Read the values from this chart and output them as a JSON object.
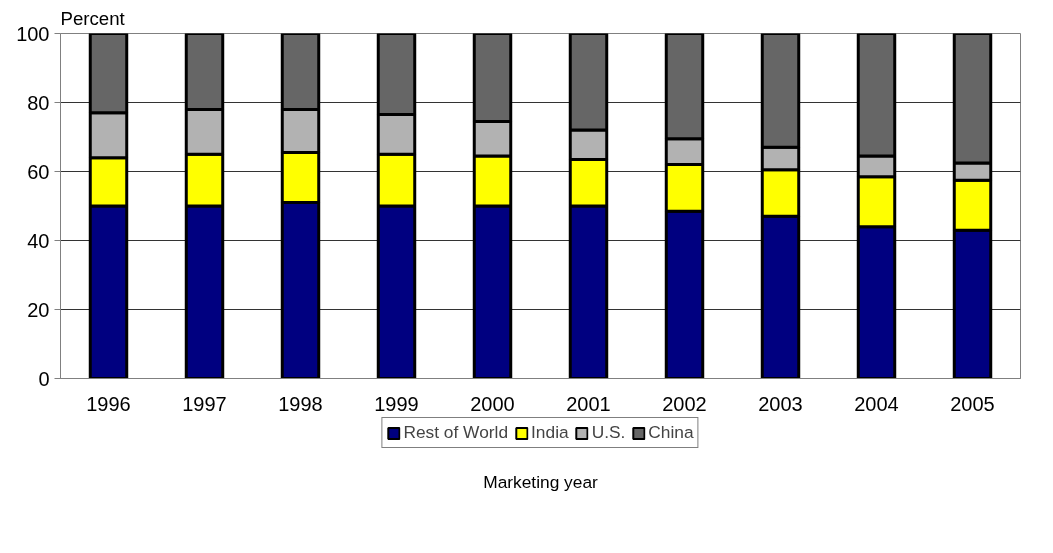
{
  "chart_data": {
    "type": "bar",
    "stacked": true,
    "ylabel": "Percent",
    "xlabel": "Marketing year",
    "categories": [
      "1996",
      "1997",
      "1998",
      "1999",
      "2000",
      "2001",
      "2002",
      "2003",
      "2004",
      "2005"
    ],
    "ylim": [
      0,
      100
    ],
    "yticks": [
      0,
      20,
      40,
      60,
      80,
      100
    ],
    "grid": "y",
    "legend": "bottom",
    "series": [
      {
        "name": "Rest of World",
        "color": "#000080",
        "values": [
          50,
          50,
          51,
          50,
          50,
          50,
          48.5,
          47,
          44,
          43
        ]
      },
      {
        "name": "India",
        "color": "#ffff00",
        "values": [
          14,
          15,
          14.5,
          15,
          14.5,
          13.5,
          13.5,
          13.5,
          14.5,
          14.5
        ]
      },
      {
        "name": "U.S.",
        "color": "#b2b2b2",
        "values": [
          13,
          13,
          12.5,
          11.5,
          10,
          8.5,
          7.5,
          6.5,
          6,
          5
        ]
      },
      {
        "name": "China",
        "color": "#666666",
        "values": [
          23,
          22,
          22,
          23.5,
          25.5,
          28,
          30.5,
          33,
          35.5,
          37.5
        ]
      }
    ]
  }
}
